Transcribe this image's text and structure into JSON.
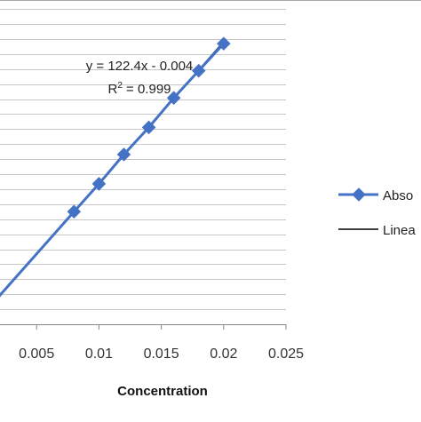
{
  "chart_data": {
    "type": "scatter",
    "title": "",
    "xlabel": "Concentration",
    "ylabel": "",
    "xlim": [
      0,
      0.025
    ],
    "ylim": [
      0,
      2.8
    ],
    "x_ticks": [
      0.005,
      0.01,
      0.015,
      0.02,
      0.025
    ],
    "x_tick_labels": [
      "0.005",
      "0.01",
      "0.015",
      "0.02",
      "0.025"
    ],
    "grid": true,
    "legend_position": "right",
    "series": [
      {
        "name": "Abso",
        "color": "#4472c4",
        "marker": "diamond",
        "x": [
          0.008,
          0.01,
          0.012,
          0.014,
          0.016,
          0.018,
          0.02
        ],
        "y": [
          0.975,
          1.216,
          1.47,
          1.705,
          1.96,
          2.195,
          2.43
        ]
      },
      {
        "name": "Linea",
        "color": "#1f3a5f",
        "type": "linear-trendline",
        "slope": 122.4,
        "intercept": -0.004
      }
    ],
    "annotations": {
      "equation": "y = 122.4x - 0.004",
      "r_squared_prefix": "R",
      "r_squared_sup": "2",
      "r_squared_value": " = 0.999"
    }
  }
}
